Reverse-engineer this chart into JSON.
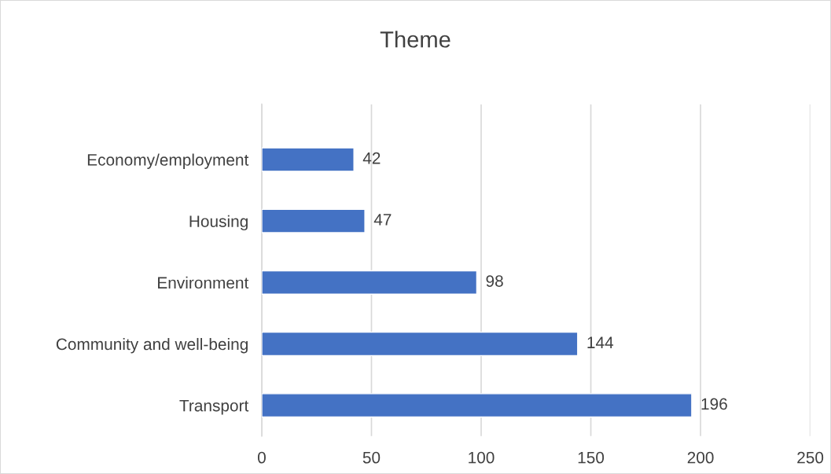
{
  "chart_data": {
    "type": "bar",
    "title": "Theme",
    "orientation": "horizontal",
    "categories": [
      "Economy/employment",
      "Housing",
      "Environment",
      "Community and well-being",
      "Transport"
    ],
    "values": [
      42,
      47,
      98,
      144,
      196
    ],
    "color": "#4472c4",
    "xlim": [
      0,
      250
    ],
    "xticks": [
      0,
      50,
      100,
      150,
      200,
      250
    ],
    "grid": "x",
    "data_labels": true,
    "legend": false
  }
}
